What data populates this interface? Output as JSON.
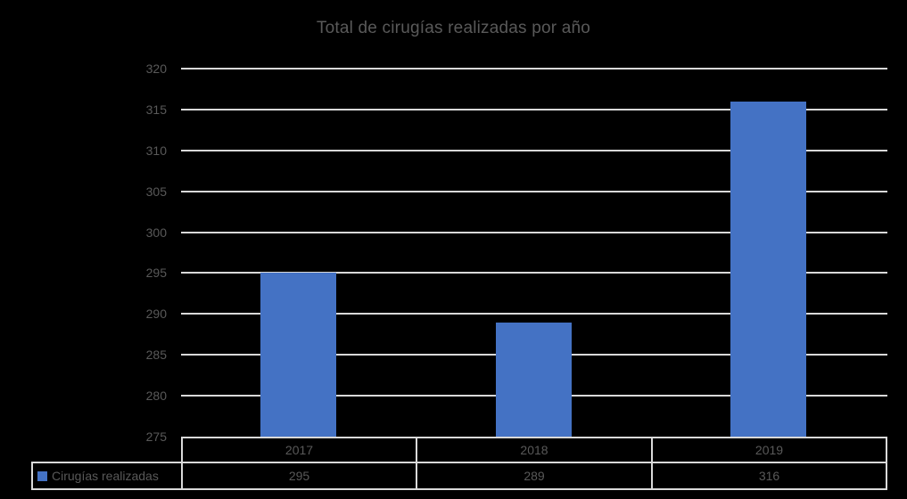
{
  "title": "Total de cirugías realizadas por año",
  "colors": {
    "background": "#000000",
    "bar": "#4472C4",
    "gridline": "#D9D9D9",
    "table_border": "#D9D9D9",
    "text": "#595959"
  },
  "legend": {
    "label": "Cirugías realizadas",
    "marker": "blue-square"
  },
  "chart_data": {
    "type": "bar",
    "title": "Total de cirugías realizadas por año",
    "categories": [
      "2017",
      "2018",
      "2019"
    ],
    "series": [
      {
        "name": "Cirugías realizadas",
        "values": [
          295,
          289,
          316
        ]
      }
    ],
    "xlabel": "",
    "ylabel": "",
    "ylim": [
      275,
      320
    ],
    "ytick_step": 5,
    "yticks": [
      320,
      315,
      310,
      305,
      300,
      295,
      290,
      285,
      280,
      275
    ],
    "grid": true,
    "legend_position": "bottom-table",
    "data_table_shown": true
  }
}
